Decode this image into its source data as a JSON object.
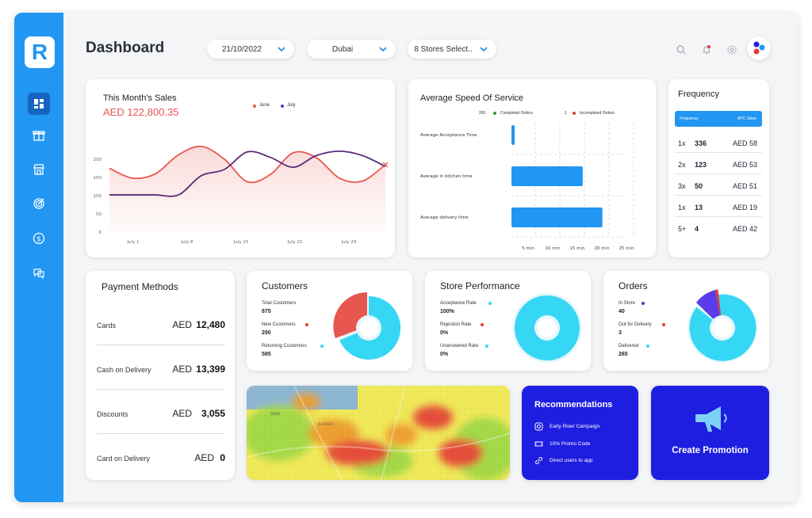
{
  "logo": {
    "letter": "R"
  },
  "sidebar": {
    "items": [
      {
        "icon": "grid-icon",
        "active": true
      },
      {
        "icon": "box-icon",
        "active": false
      },
      {
        "icon": "store-icon",
        "active": false
      },
      {
        "icon": "target-icon",
        "active": false
      },
      {
        "icon": "dollar-icon",
        "active": false
      },
      {
        "icon": "chat-icon",
        "active": false
      }
    ]
  },
  "header": {
    "title": "Dashboard",
    "date_value": "21/10/2022",
    "city_value": "Dubai",
    "stores_value": "8 Stores Select.."
  },
  "sales": {
    "title": "This Month's Sales",
    "amount": "AED 122,800.35",
    "legend": [
      "June",
      "July"
    ]
  },
  "speed": {
    "title": "Average Speed Of Service",
    "legend": [
      {
        "count": "265",
        "label": "Completed Orders"
      },
      {
        "count": "1",
        "label": "Incompleted Orders"
      }
    ]
  },
  "frequency": {
    "title": "Frequency",
    "col1": "Frequency",
    "col2": "APC Value",
    "rows": [
      {
        "freq": "1x",
        "count": "336",
        "apc": "AED 58"
      },
      {
        "freq": "2x",
        "count": "123",
        "apc": "AED 53"
      },
      {
        "freq": "3x",
        "count": "50",
        "apc": "AED 51"
      },
      {
        "freq": "1x",
        "count": "13",
        "apc": "AED 19"
      },
      {
        "freq": "5+",
        "count": "4",
        "apc": "AED 42"
      }
    ]
  },
  "payment": {
    "title": "Payment Methods",
    "rows": [
      {
        "label": "Cards",
        "currency": "AED",
        "amount": "12,480"
      },
      {
        "label": "Cash on Delivery",
        "currency": "AED",
        "amount": "13,399"
      },
      {
        "label": "Discounts",
        "currency": "AED",
        "amount": "3,055"
      },
      {
        "label": "Card on Delivery",
        "currency": "AED",
        "amount": "0"
      }
    ]
  },
  "customers": {
    "title": "Customers",
    "stats": [
      {
        "label": "Total Customers",
        "value": "875"
      },
      {
        "label": "New Customers",
        "value": "290"
      },
      {
        "label": "Returning Customers",
        "value": "585"
      }
    ]
  },
  "store_performance": {
    "title": "Store Performance",
    "stats": [
      {
        "label": "Acceptance Rate",
        "value": "100%"
      },
      {
        "label": "Rejection Rate",
        "value": "0%"
      },
      {
        "label": "Unanswered Rate",
        "value": "0%"
      }
    ]
  },
  "orders": {
    "title": "Orders",
    "stats": [
      {
        "label": "In Store",
        "value": "40"
      },
      {
        "label": "Out for Delivery",
        "value": "3"
      },
      {
        "label": "Delivered",
        "value": "265"
      }
    ]
  },
  "map": {
    "labels": [
      "AL RIGGA",
      "DEIRA"
    ]
  },
  "recommendations": {
    "title": "Recommendations",
    "items": [
      {
        "label": "Early Riser Campaign",
        "icon": "instagram-icon"
      },
      {
        "label": "10% Promo Code",
        "icon": "ticket-icon"
      },
      {
        "label": "Direct users to app",
        "icon": "link-icon"
      }
    ]
  },
  "promotion": {
    "label": "Create Promotion"
  },
  "colors": {
    "primary": "#2196f3",
    "accent": "#1e1ee0",
    "red": "#e8574f",
    "purple": "#5b2a7a",
    "cyan": "#36d6f5"
  },
  "chart_data": [
    {
      "type": "line",
      "title": "This Month's Sales",
      "x_ticks": [
        "July 1",
        "July 8",
        "July 15",
        "July 22",
        "July 29"
      ],
      "y_ticks": [
        0,
        50,
        100,
        150,
        200
      ],
      "ylim": [
        0,
        250
      ],
      "x": [
        0,
        1,
        2,
        3,
        4,
        5,
        6,
        7,
        8,
        9,
        10,
        11,
        12
      ],
      "series": [
        {
          "name": "June",
          "color": "#e8574f",
          "values": [
            175,
            148,
            160,
            212,
            235,
            200,
            138,
            158,
            218,
            204,
            148,
            140,
            185
          ]
        },
        {
          "name": "July",
          "color": "#5b2a7a",
          "values": [
            102,
            102,
            102,
            102,
            155,
            172,
            220,
            205,
            178,
            210,
            222,
            210,
            180
          ]
        }
      ],
      "grid": false,
      "legend": "top"
    },
    {
      "type": "bar",
      "orientation": "horizontal",
      "title": "Average Speed Of Service",
      "categories": [
        "Average Acceptance Time",
        "Average in kitchen time",
        "Average delivery time"
      ],
      "values": [
        0.3,
        14.5,
        18.5
      ],
      "x_ticks": [
        "5 min",
        "10 min",
        "15 min",
        "20 min",
        "25 min"
      ],
      "xlim": [
        0,
        25
      ]
    }
  ]
}
